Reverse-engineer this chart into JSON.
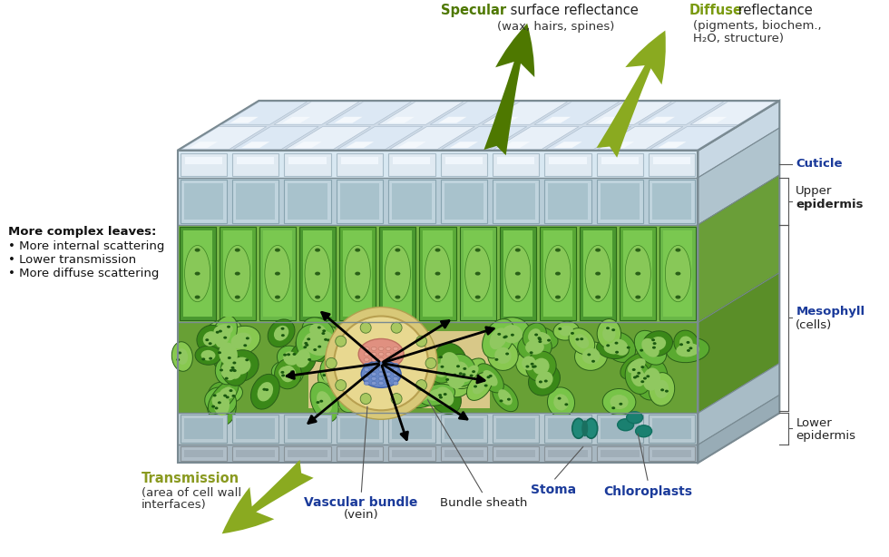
{
  "background_color": "#ffffff",
  "specular_bold": "Specular",
  "specular_rest": " surface reflectance",
  "specular_sub": "(wax, hairs, spines)",
  "specular_color_bold": "#4e7800",
  "diffuse_bold": "Diffuse",
  "diffuse_rest": " reflectance",
  "diffuse_sub1": "(pigments, biochem.,",
  "diffuse_sub2": "H₂O, structure)",
  "diffuse_color_bold": "#7a9a10",
  "transmission_bold": "Transmission",
  "transmission_sub1": "(area of cell wall",
  "transmission_sub2": "interfaces)",
  "transmission_color": "#8a9a20",
  "complex_leaves_title": "More complex leaves:",
  "complex_leaves_bullets": [
    "• More internal scattering",
    "• Lower transmission",
    "• More diffuse scattering"
  ],
  "cuticle_label": "Cuticle",
  "cuticle_color": "#1a3a9a",
  "upper_label1": "Upper",
  "upper_label2": "epidermis",
  "upper_label2_bold": true,
  "mesophyll_label": "Mesophyll",
  "mesophyll_color": "#1a3a9a",
  "mesophyll_sub": "(cells)",
  "lower_label1": "Lower",
  "lower_label2": "epidermis",
  "stoma_label": "Stoma",
  "stoma_color": "#1a3a9a",
  "chloroplasts_label": "Chloroplasts",
  "chloroplasts_color": "#1a3a9a",
  "bundle_sheath_label": "Bundle sheath",
  "vascular_bundle_bold": "Vascular bundle",
  "vascular_bundle_sub": "(vein)",
  "vascular_bundle_color": "#1a3a9a",
  "fig_width": 9.8,
  "fig_height": 6.14
}
